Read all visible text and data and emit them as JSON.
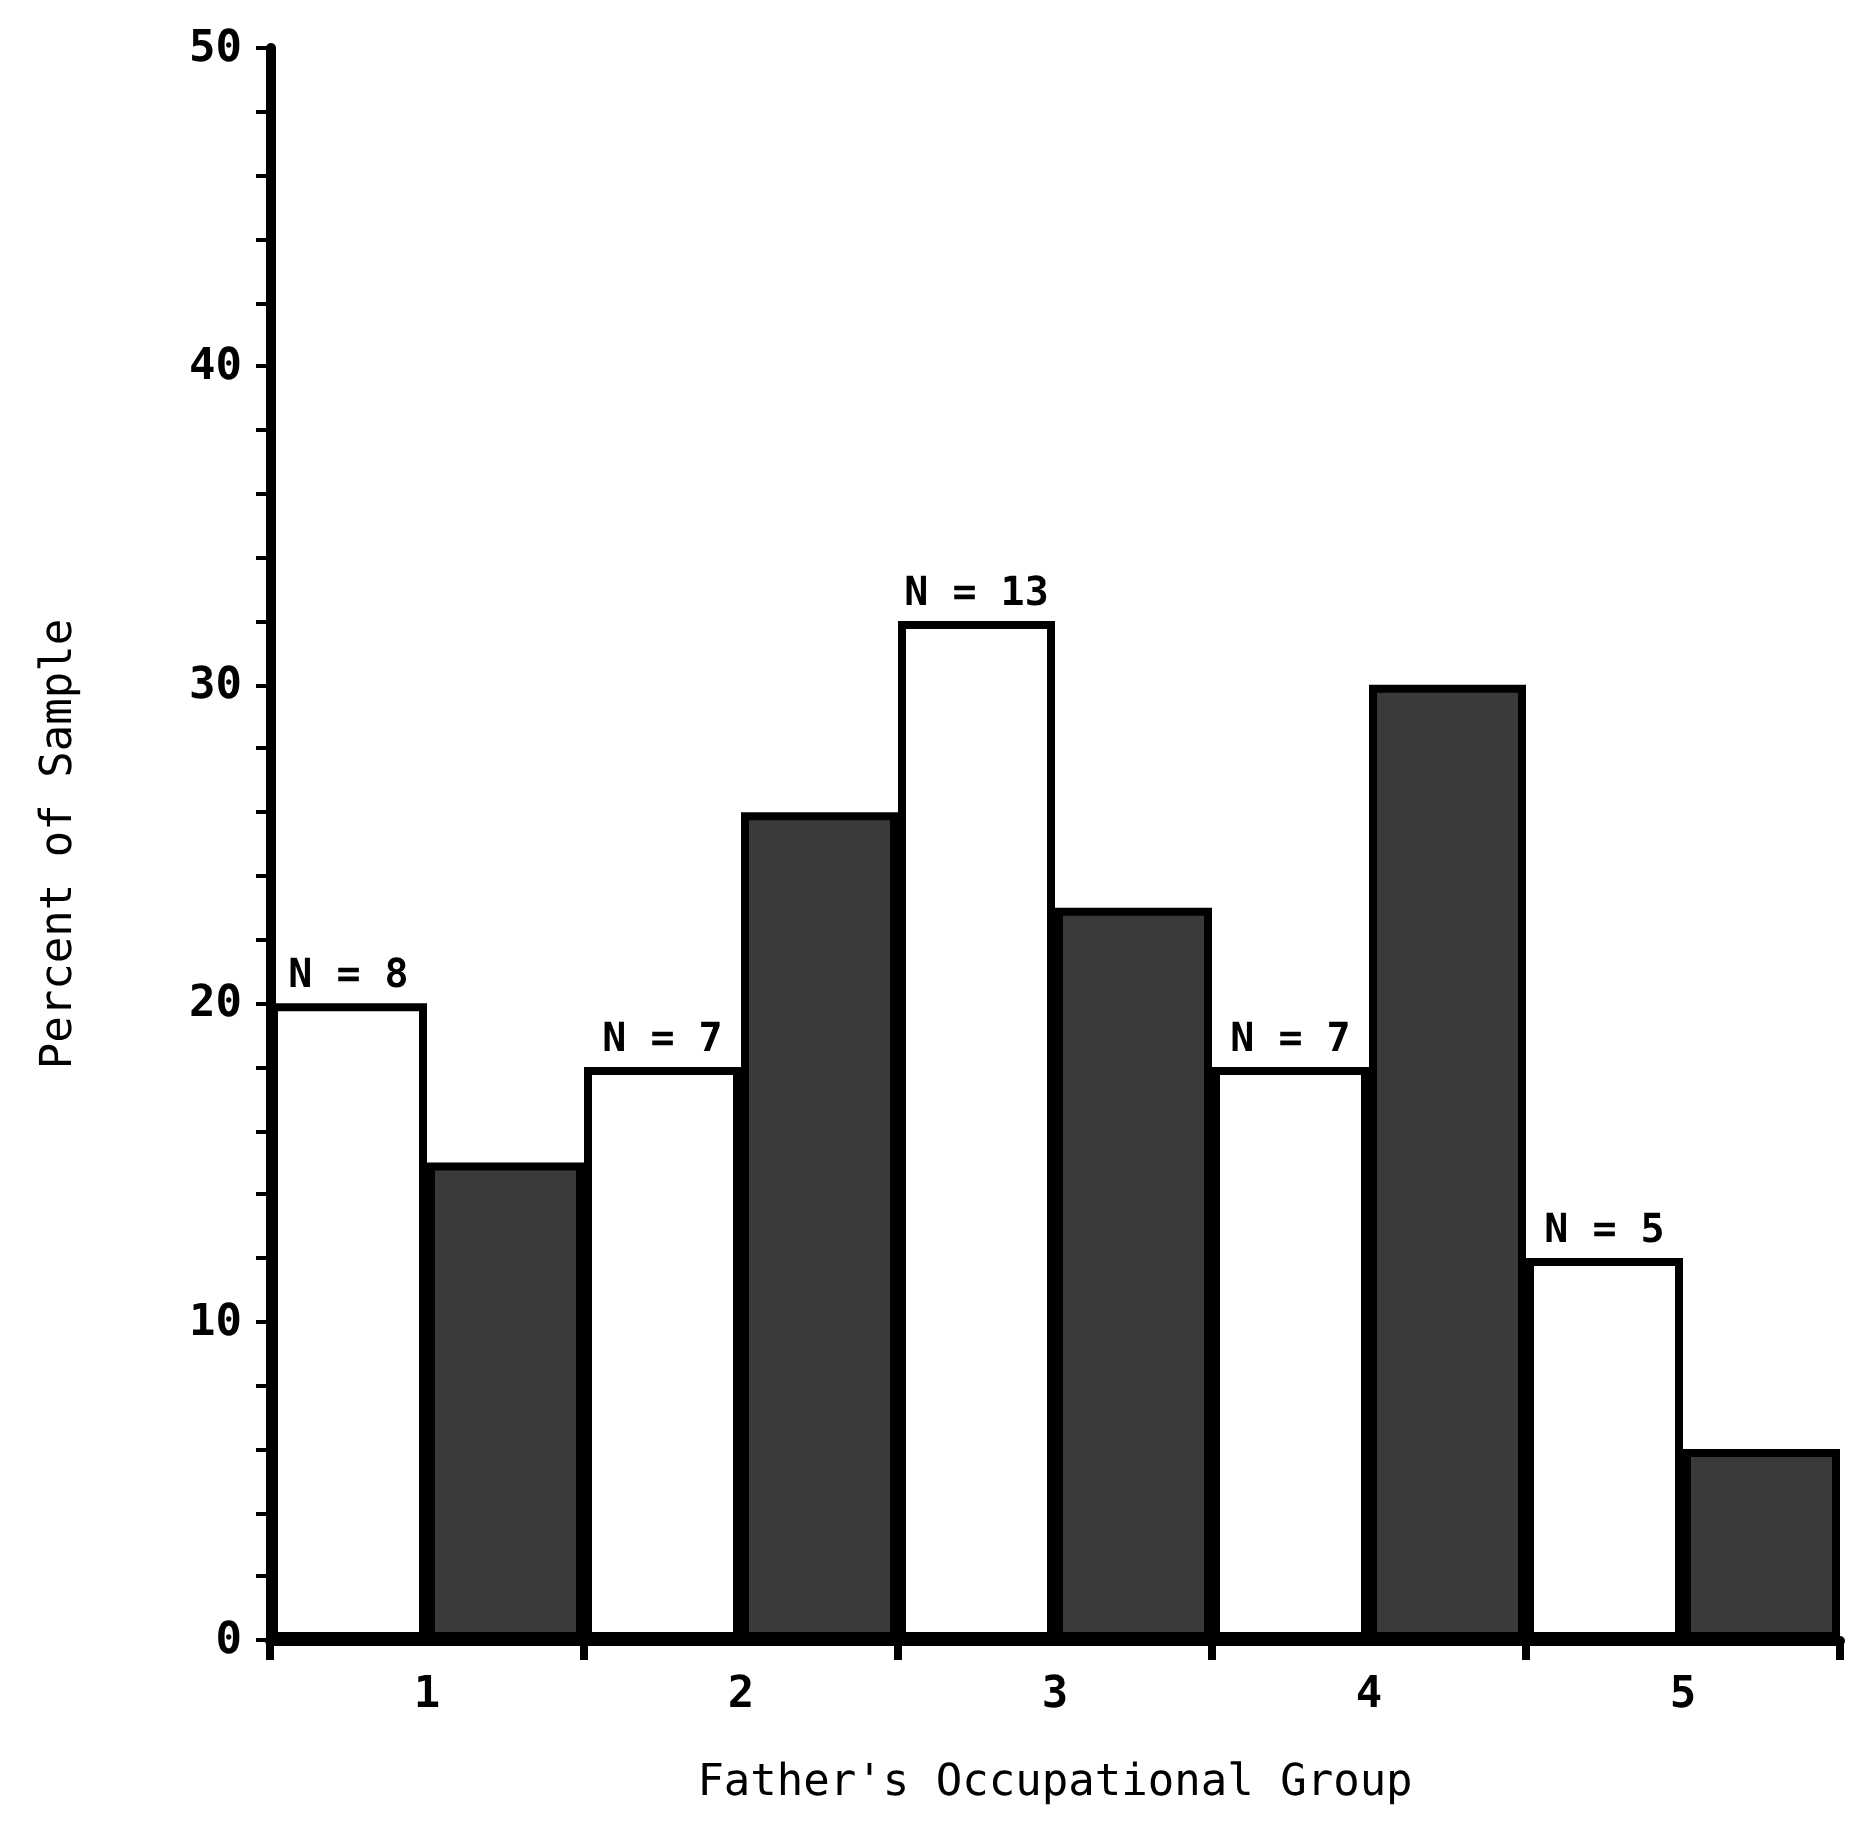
{
  "chart_data": {
    "type": "bar",
    "xlabel": "Father's Occupational Group",
    "ylabel": "Percent of Sample",
    "categories": [
      "1",
      "2",
      "3",
      "4",
      "5"
    ],
    "series": [
      {
        "color": "#ffffff",
        "values": [
          20,
          18,
          32,
          18,
          12
        ]
      },
      {
        "color": "#3a3a3a",
        "values": [
          15,
          26,
          23,
          30,
          6
        ]
      }
    ],
    "ylim": [
      0,
      50
    ],
    "yticks": [
      0,
      {
        "value": 2,
        "label": null
      },
      {
        "value": 4,
        "label": null
      },
      {
        "value": 6,
        "label": null
      },
      {
        "value": 8,
        "label": null
      },
      10,
      {
        "value": 12,
        "label": null
      },
      {
        "value": 14,
        "label": null
      },
      {
        "value": 16,
        "label": null
      },
      {
        "value": 18,
        "label": null
      },
      20,
      {
        "value": 22,
        "label": null
      },
      {
        "value": 24,
        "label": null
      },
      {
        "value": 26,
        "label": null
      },
      {
        "value": 28,
        "label": null
      },
      30,
      {
        "value": 32,
        "label": null
      },
      {
        "value": 34,
        "label": null
      },
      {
        "value": 36,
        "label": null
      },
      {
        "value": 38,
        "label": null
      },
      40,
      {
        "value": 42,
        "label": null
      },
      {
        "value": 44,
        "label": null
      },
      {
        "value": 46,
        "label": null
      },
      {
        "value": 48,
        "label": null
      },
      50
    ],
    "annotations": [
      {
        "text": "N = 8",
        "x": "1",
        "y": 20
      },
      {
        "text": "N = 7",
        "x": "2",
        "y": 18
      },
      {
        "text": "N = 13",
        "x": "3",
        "y": 32
      },
      {
        "text": "N = 7",
        "x": "4",
        "y": 18
      },
      {
        "text": "N = 5",
        "x": "5",
        "y": 12
      }
    ]
  }
}
